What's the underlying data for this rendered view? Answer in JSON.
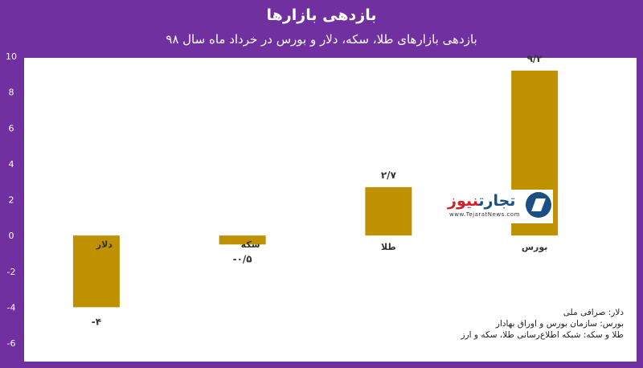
{
  "title": "بازدهی بازارها",
  "subtitle": "بازدهی بازارهای طلا، سکه، دلار و بورس در خرداد ماه سال ۹۸",
  "colors": {
    "background": "#7030a0",
    "bar": "#bf9000",
    "plot": "#ffffff"
  },
  "logo": {
    "name_blue": "تجارت",
    "name_red": "نیوز",
    "url": "www.TejaratNews.com",
    "icon": "tejarat-news-logo-icon"
  },
  "sources": [
    "دلار: صرافی ملی",
    "بورس: سازمان بورس و اوراق بهادار",
    "طلا و سکه: شبکه اطلاع‌رسانی طلا، سکه و ارز"
  ],
  "chart_data": {
    "type": "bar",
    "categories": [
      "دلار",
      "سکه",
      "طلا",
      "بورس"
    ],
    "values": [
      -4,
      -0.5,
      2.7,
      9.2
    ],
    "value_labels": [
      "-۴",
      "-۰/۵",
      "۲/۷",
      "۹/۲"
    ],
    "ylim": [
      -6,
      10
    ],
    "yticks": [
      10,
      8,
      6,
      4,
      2,
      0,
      -2,
      -4,
      -6
    ],
    "ytick_labels": [
      "10",
      "8",
      "6",
      "4",
      "2",
      "0",
      "-2",
      "-4",
      "-6"
    ],
    "grid": false,
    "legend": "none"
  }
}
